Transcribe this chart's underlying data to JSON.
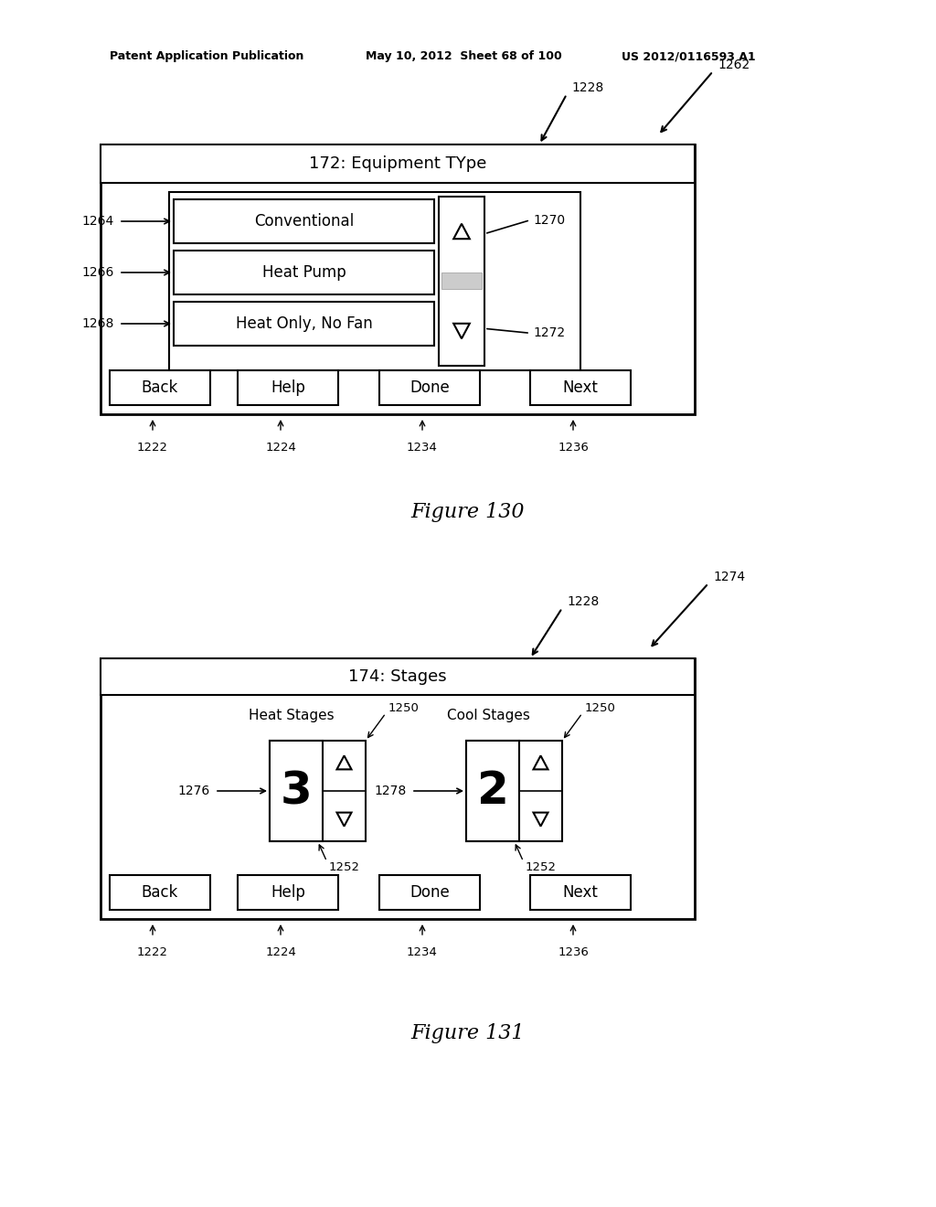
{
  "bg_color": "#ffffff",
  "header_text_left": "Patent Application Publication",
  "header_text_mid": "May 10, 2012  Sheet 68 of 100",
  "header_text_right": "US 2012/0116593 A1",
  "fig130": {
    "label": "1262",
    "arrow_label": "1228",
    "title": "172: Equipment TYpe",
    "items": [
      "Conventional",
      "Heat Pump",
      "Heat Only, No Fan"
    ],
    "item_labels": [
      "1264",
      "1266",
      "1268"
    ],
    "up_label": "1270",
    "down_label": "1272",
    "buttons": [
      "Back",
      "Help",
      "Done",
      "Next"
    ],
    "btn_labels": [
      "1222",
      "1224",
      "1234",
      "1236"
    ],
    "caption": "Figure 130"
  },
  "fig131": {
    "label": "1274",
    "arrow_label": "1228",
    "title": "174: Stages",
    "heat_label": "Heat Stages",
    "cool_label": "Cool Stages",
    "heat_num": "3",
    "cool_num": "2",
    "heat_num_label": "1276",
    "cool_num_label": "1278",
    "spinner_label1": "1250",
    "spinner_label2": "1250",
    "spinner_bot1": "1252",
    "spinner_bot2": "1252",
    "buttons": [
      "Back",
      "Help",
      "Done",
      "Next"
    ],
    "btn_labels": [
      "1222",
      "1224",
      "1234",
      "1236"
    ],
    "caption": "Figure 131"
  }
}
